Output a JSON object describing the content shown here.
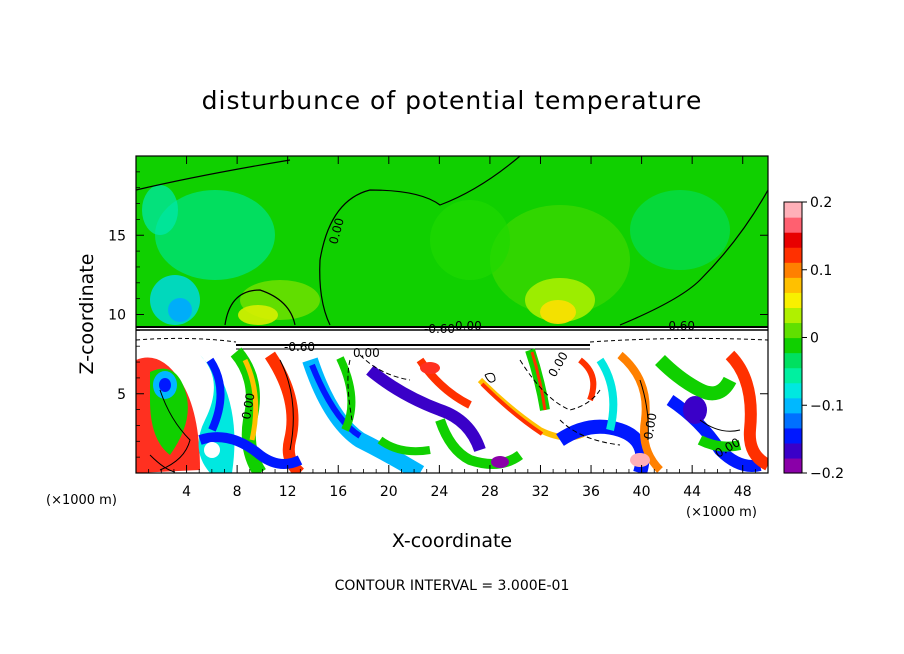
{
  "chart_data": {
    "type": "heatmap",
    "title": "disturbunce of potential temperature",
    "xlabel": "X-coordinate",
    "ylabel": "Z-coordinate",
    "x_unit": "(×1000 m)",
    "x_unit_right": "(×1000 m)",
    "x_ticks": [
      4,
      8,
      12,
      16,
      20,
      24,
      28,
      32,
      36,
      40,
      44,
      48
    ],
    "y_ticks": [
      5,
      10,
      15
    ],
    "xlim": [
      0,
      50
    ],
    "ylim": [
      0,
      20
    ],
    "colorbar": {
      "ticks": [
        0.2,
        0.1,
        0,
        -0.1,
        -0.2
      ],
      "tick_labels": [
        "0.2",
        "0.1",
        "0",
        "−0.1",
        "−0.2"
      ],
      "range": [
        -0.2,
        0.2
      ],
      "colors": [
        "#8a00a8",
        "#3a00c8",
        "#0018ff",
        "#0070ff",
        "#00b8ff",
        "#00e8e0",
        "#00f0a0",
        "#00e060",
        "#10d000",
        "#60e000",
        "#b0f000",
        "#f8f000",
        "#ffc000",
        "#ff8000",
        "#ff3000",
        "#e80000",
        "#ff6070",
        "#ffb0b8"
      ]
    },
    "contour_labels": [
      "0.00",
      "0.00",
      "-0.60",
      "-0.60",
      "0.00",
      "-0.60",
      "0.00",
      "0.00",
      "0.00",
      "0.00"
    ],
    "footer": "CONTOUR INTERVAL = 3.000E-01"
  }
}
